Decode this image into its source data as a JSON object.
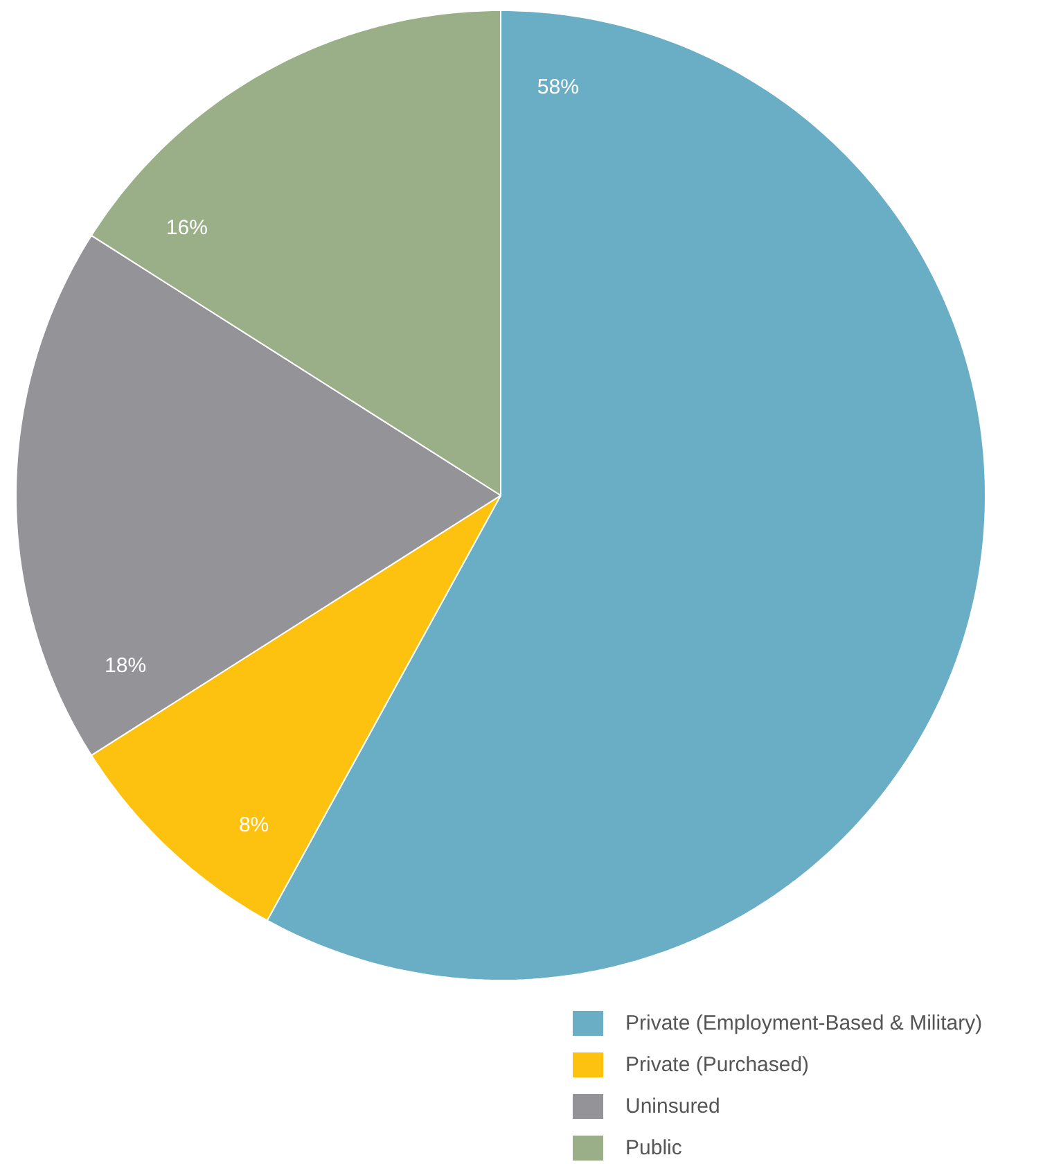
{
  "chart_data": {
    "type": "pie",
    "categories": [
      "Private (Employment-Based & Military)",
      "Private (Purchased)",
      "Uninsured",
      "Public"
    ],
    "values": [
      58,
      8,
      18,
      16
    ],
    "colors": [
      "#6aaec6",
      "#fdc210",
      "#939398",
      "#9aae87"
    ],
    "value_labels": [
      "58%",
      "8%",
      "18%",
      "16%"
    ],
    "legend": "bottom right"
  }
}
